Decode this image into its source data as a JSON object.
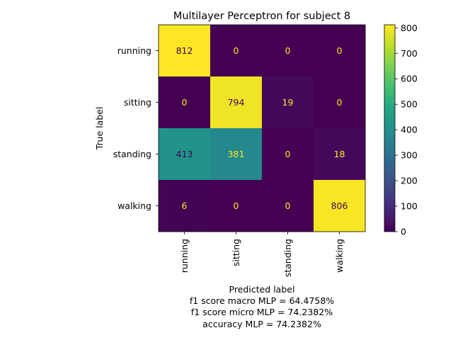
{
  "chart_data": {
    "type": "heatmap",
    "title": "Multilayer Perceptron for subject 8",
    "xlabel": "Predicted label",
    "ylabel": "True label",
    "x_labels": [
      "running",
      "sitting",
      "standing",
      "walking"
    ],
    "y_labels": [
      "running",
      "sitting",
      "standing",
      "walking"
    ],
    "values": [
      [
        812,
        0,
        0,
        0
      ],
      [
        0,
        794,
        19,
        0
      ],
      [
        413,
        381,
        0,
        18
      ],
      [
        6,
        0,
        0,
        806
      ]
    ],
    "colorbar": {
      "min": 0,
      "max": 812,
      "ticks": [
        0,
        100,
        200,
        300,
        400,
        500,
        600,
        700,
        800
      ],
      "colormap": "viridis"
    },
    "footer_lines": [
      "f1 score macro MLP = 64.4758%",
      "f1 score micro MLP = 74.2382%",
      "accuracy MLP = 74.2382%"
    ]
  }
}
